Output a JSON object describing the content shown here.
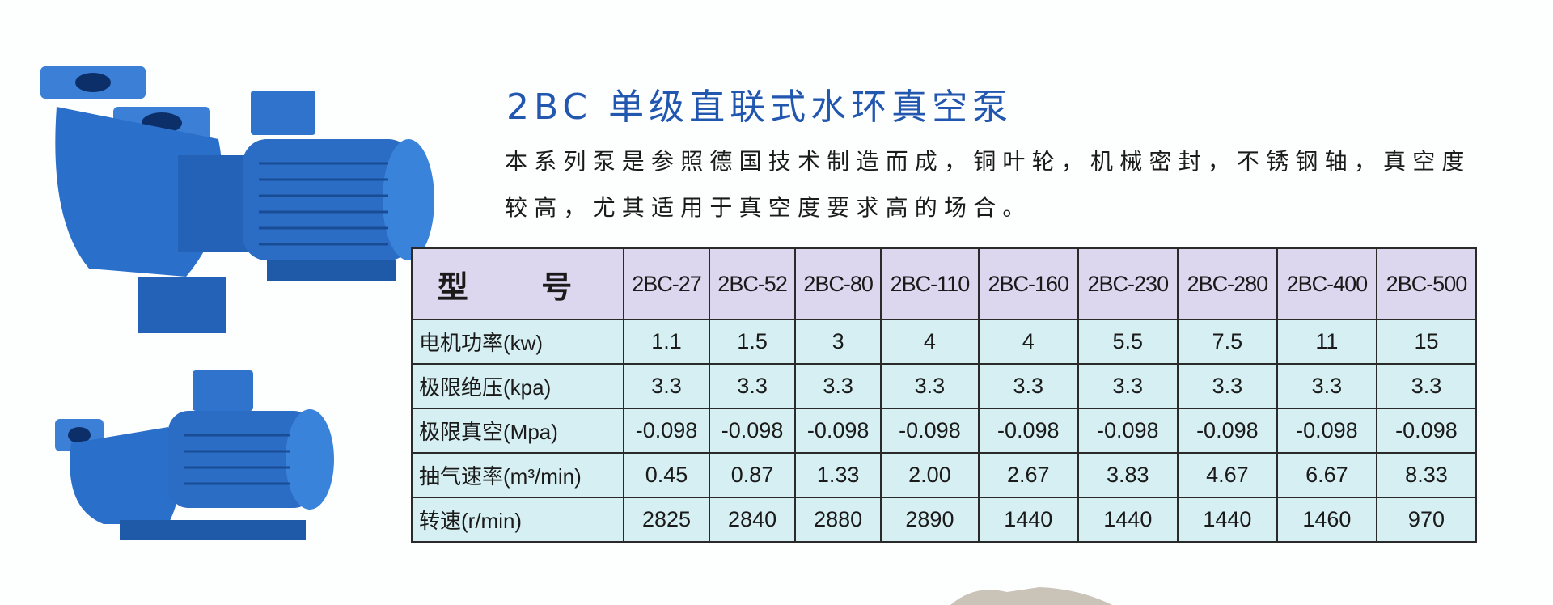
{
  "title": "2BC 单级直联式水环真空泵",
  "description": [
    "本系列泵是参照德国技术制造而成，铜叶轮，机械密封，不锈钢轴，真空度",
    "较高，尤其适用于真空度要求高的场合。"
  ],
  "table": {
    "header_label": "型 号",
    "models": [
      "2BC-27",
      "2BC-52",
      "2BC-80",
      "2BC-110",
      "2BC-160",
      "2BC-230",
      "2BC-280",
      "2BC-400",
      "2BC-500"
    ],
    "rows": [
      {
        "label": "电机功率(kw)",
        "values": [
          "1.1",
          "1.5",
          "3",
          "4",
          "4",
          "5.5",
          "7.5",
          "11",
          "15"
        ]
      },
      {
        "label": "极限绝压(kpa)",
        "values": [
          "3.3",
          "3.3",
          "3.3",
          "3.3",
          "3.3",
          "3.3",
          "3.3",
          "3.3",
          "3.3"
        ]
      },
      {
        "label": "极限真空(Mpa)",
        "values": [
          "-0.098",
          "-0.098",
          "-0.098",
          "-0.098",
          "-0.098",
          "-0.098",
          "-0.098",
          "-0.098",
          "-0.098"
        ]
      },
      {
        "label": "抽气速率(m³/min)",
        "values": [
          "0.45",
          "0.87",
          "1.33",
          "2.00",
          "2.67",
          "3.83",
          "4.67",
          "6.67",
          "8.33"
        ]
      },
      {
        "label": "转速(r/min)",
        "values": [
          "2825",
          "2840",
          "2880",
          "2890",
          "1440",
          "1440",
          "1440",
          "1460",
          "970"
        ]
      }
    ]
  },
  "colors": {
    "title": "#2257b0",
    "header_bg": "#ddd6ef",
    "cell_bg": "#d6eff2",
    "pump": "#2a6fc9"
  }
}
